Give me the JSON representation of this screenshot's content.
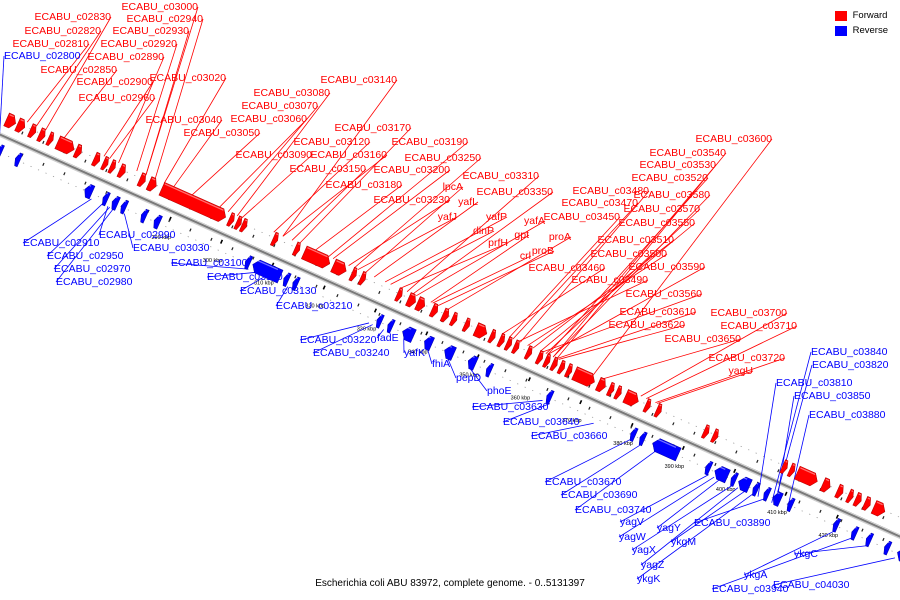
{
  "title": "Escherichia coli ABU 83972, complete genome. - 0..5131397",
  "colors": {
    "forward": "#ff0000",
    "reverse": "#0000ff",
    "backbone": "#888888"
  },
  "legend": [
    {
      "label": "Forward",
      "strand": "forward"
    },
    {
      "label": "Reverse",
      "strand": "reverse"
    }
  ],
  "ticks": [
    {
      "label": "290 kbp",
      "kbp": 290
    },
    {
      "label": "300 kbp",
      "kbp": 300
    },
    {
      "label": "310 kbp",
      "kbp": 310
    },
    {
      "label": "320 kbp",
      "kbp": 320
    },
    {
      "label": "330 kbp",
      "kbp": 330
    },
    {
      "label": "340 kbp",
      "kbp": 340
    },
    {
      "label": "350 kbp",
      "kbp": 350
    },
    {
      "label": "360 kbp",
      "kbp": 360
    },
    {
      "label": "370 kbp",
      "kbp": 370
    },
    {
      "label": "380 kbp",
      "kbp": 380
    },
    {
      "label": "390 kbp",
      "kbp": 390
    },
    {
      "label": "400 kbp",
      "kbp": 400
    },
    {
      "label": "410 kbp",
      "kbp": 410
    },
    {
      "label": "420 kbp",
      "kbp": 420
    }
  ],
  "forward_genes": [
    {
      "label": "ECABU_c03000"
    },
    {
      "label": "ECABU_c02830"
    },
    {
      "label": "ECABU_c02940"
    },
    {
      "label": "ECABU_c02820"
    },
    {
      "label": "ECABU_c02930"
    },
    {
      "label": "ECABU_c02810"
    },
    {
      "label": "ECABU_c02920"
    },
    {
      "label": "ECABU_c02890"
    },
    {
      "label": "ECABU_c02850"
    },
    {
      "label": "ECABU_c02900"
    },
    {
      "label": "ECABU_c03020"
    },
    {
      "label": "ECABU_c02960"
    },
    {
      "label": "ECABU_c03140"
    },
    {
      "label": "ECABU_c03080"
    },
    {
      "label": "ECABU_c03070"
    },
    {
      "label": "ECABU_c03060"
    },
    {
      "label": "ECABU_c03040"
    },
    {
      "label": "ECABU_c03050"
    },
    {
      "label": "ECABU_c03170"
    },
    {
      "label": "ECABU_c03120"
    },
    {
      "label": "ECABU_c03190"
    },
    {
      "label": "ECABU_c03090"
    },
    {
      "label": "ECABU_c03160"
    },
    {
      "label": "ECABU_c03250"
    },
    {
      "label": "ECABU_c03150"
    },
    {
      "label": "ECABU_c03200"
    },
    {
      "label": "ECABU_c03180"
    },
    {
      "label": "ECABU_c03310"
    },
    {
      "label": "lpcA"
    },
    {
      "label": "ECABU_c03350"
    },
    {
      "label": "yafL"
    },
    {
      "label": "ECABU_c03230"
    },
    {
      "label": "yafP"
    },
    {
      "label": "yafJ"
    },
    {
      "label": "dinP"
    },
    {
      "label": "yafA"
    },
    {
      "label": "prfH"
    },
    {
      "label": "gpt"
    },
    {
      "label": "proA"
    },
    {
      "label": "crl"
    },
    {
      "label": "proB"
    },
    {
      "label": "ECABU_c03600"
    },
    {
      "label": "ECABU_c03540"
    },
    {
      "label": "ECABU_c03530"
    },
    {
      "label": "ECABU_c03520"
    },
    {
      "label": "ECABU_c03480"
    },
    {
      "label": "ECABU_c03580"
    },
    {
      "label": "ECABU_c03470"
    },
    {
      "label": "ECABU_c03570"
    },
    {
      "label": "ECABU_c03450"
    },
    {
      "label": "ECABU_c03550"
    },
    {
      "label": "ECABU_c03510"
    },
    {
      "label": "ECABU_c03500"
    },
    {
      "label": "ECABU_c03460"
    },
    {
      "label": "ECABU_c03590"
    },
    {
      "label": "ECABU_c03490"
    },
    {
      "label": "ECABU_c03560"
    },
    {
      "label": "ECABU_c03610"
    },
    {
      "label": "ECABU_c03700"
    },
    {
      "label": "ECABU_c03620"
    },
    {
      "label": "ECABU_c03710"
    },
    {
      "label": "ECABU_c03650"
    },
    {
      "label": "ECABU_c03720"
    },
    {
      "label": "yagU"
    }
  ],
  "reverse_genes": [
    {
      "label": "ECABU_c02800"
    },
    {
      "label": "ECABU_c02910"
    },
    {
      "label": "ECABU_c02990"
    },
    {
      "label": "ECABU_c02950"
    },
    {
      "label": "ECABU_c03030"
    },
    {
      "label": "ECABU_c02970"
    },
    {
      "label": "ECABU_c02980"
    },
    {
      "label": "ECABU_c03100"
    },
    {
      "label": "ECABU_c03110"
    },
    {
      "label": "ECABU_c03130"
    },
    {
      "label": "ECABU_c03210"
    },
    {
      "label": "ECABU_c03220"
    },
    {
      "label": "fadE"
    },
    {
      "label": "ECABU_c03240"
    },
    {
      "label": "yafK"
    },
    {
      "label": "fhiA"
    },
    {
      "label": "pepD"
    },
    {
      "label": "phoE"
    },
    {
      "label": "ECABU_c03630"
    },
    {
      "label": "ECABU_c03640"
    },
    {
      "label": "ECABU_c03660"
    },
    {
      "label": "ECABU_c03670"
    },
    {
      "label": "ECABU_c03690"
    },
    {
      "label": "ECABU_c03740"
    },
    {
      "label": "yagV"
    },
    {
      "label": "yagW"
    },
    {
      "label": "yagY"
    },
    {
      "label": "yagX"
    },
    {
      "label": "ykgM"
    },
    {
      "label": "yagZ"
    },
    {
      "label": "ykgK"
    },
    {
      "label": "ECABU_c03890"
    },
    {
      "label": "ykgA"
    },
    {
      "label": "ECABU_c03940"
    },
    {
      "label": "ykgC"
    },
    {
      "label": "ECABU_c04030"
    },
    {
      "label": "ECABU_c03840"
    },
    {
      "label": "ECABU_c03820"
    },
    {
      "label": "ECABU_c03810"
    },
    {
      "label": "ECABU_c03850"
    },
    {
      "label": "ECABU_c03880"
    }
  ]
}
